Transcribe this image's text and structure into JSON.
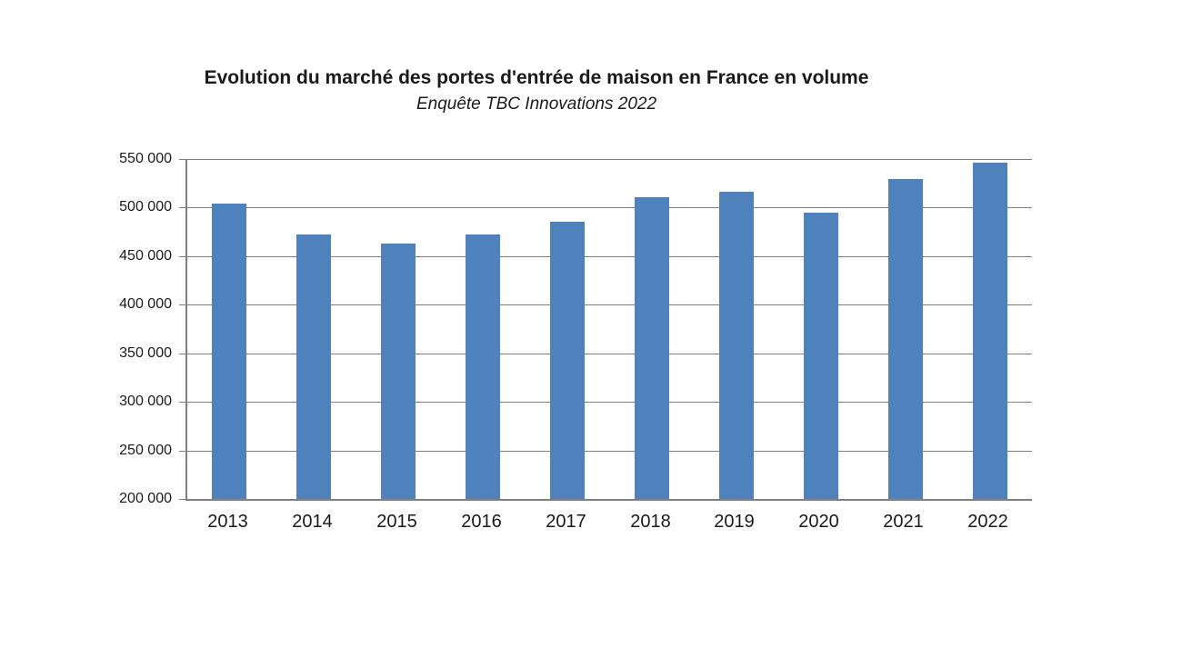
{
  "header": {
    "title": "Evolution du marché des portes d'entrée de maison en France en volume",
    "subtitle": "Enquête TBC Innovations 2022"
  },
  "chart_data": {
    "type": "bar",
    "title": "Evolution du marché des portes d'entrée de maison en France en volume",
    "subtitle": "Enquête TBC Innovations 2022",
    "categories": [
      "2013",
      "2014",
      "2015",
      "2016",
      "2017",
      "2018",
      "2019",
      "2020",
      "2021",
      "2022"
    ],
    "values": [
      504000,
      472000,
      463000,
      472000,
      485000,
      511000,
      516000,
      495000,
      529000,
      546000
    ],
    "xlabel": "",
    "ylabel": "",
    "ylim": [
      200000,
      550000
    ],
    "ytick_step": 50000,
    "ytick_labels": [
      "550 000",
      "500 000",
      "450 000",
      "400 000",
      "350 000",
      "300 000",
      "250 000",
      "200 000"
    ],
    "grid": true,
    "legend": "none",
    "colors": {
      "bar": "#4f81bd",
      "gridline": "#7f7f7f",
      "axis": "#7f7f7f",
      "text": "#1a1a1a",
      "background": "#ffffff"
    }
  }
}
